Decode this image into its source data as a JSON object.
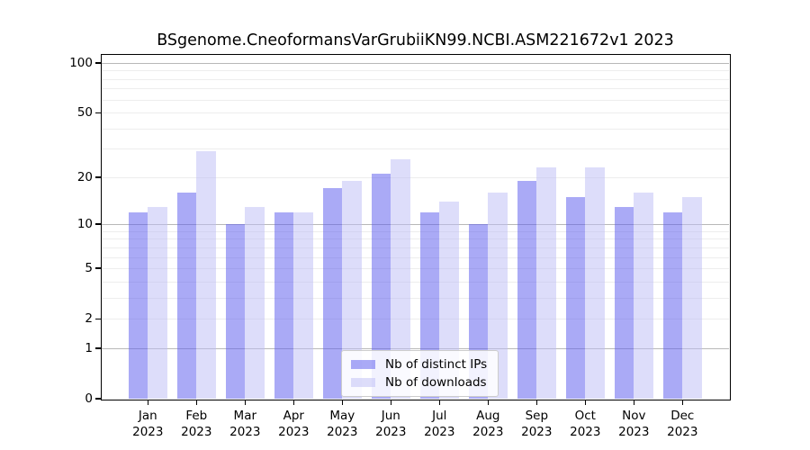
{
  "chart_data": {
    "type": "bar",
    "title": "BSgenome.CneoformansVarGrubiiKN99.NCBI.ASM221672v1 2023",
    "categories": [
      "Jan",
      "Feb",
      "Mar",
      "Apr",
      "May",
      "Jun",
      "Jul",
      "Aug",
      "Sep",
      "Oct",
      "Nov",
      "Dec"
    ],
    "year_label": "2023",
    "series": [
      {
        "name": "Nb of distinct IPs",
        "fill": "rgba(92,92,238,0.52)",
        "values": [
          12,
          16,
          10,
          12,
          17,
          21,
          12,
          10,
          19,
          15,
          13,
          12
        ]
      },
      {
        "name": "Nb of downloads",
        "fill": "rgba(187,187,246,0.5)",
        "values": [
          13,
          29,
          13,
          12,
          19,
          26,
          14,
          16,
          23,
          23,
          16,
          15
        ]
      }
    ],
    "y_axis": {
      "scale": "log10(value+1)",
      "ticks": [
        100,
        50,
        20,
        10,
        5,
        2,
        1,
        0
      ],
      "range": [
        0,
        100
      ]
    },
    "x_axis": {
      "tick_format": "month over year"
    },
    "grid": {
      "major": [
        1,
        10,
        100
      ],
      "minor": [
        2,
        3,
        4,
        5,
        6,
        7,
        8,
        9,
        20,
        30,
        40,
        50,
        60,
        70,
        80,
        90
      ]
    },
    "legend": {
      "position": "bottom-center-inside"
    },
    "colors": {
      "distinct_ips_on_white": "#acacf5",
      "downloads_on_white": "#ddddfa",
      "grid_major": "#b8b8b8",
      "grid_minor": "#ededed"
    }
  }
}
